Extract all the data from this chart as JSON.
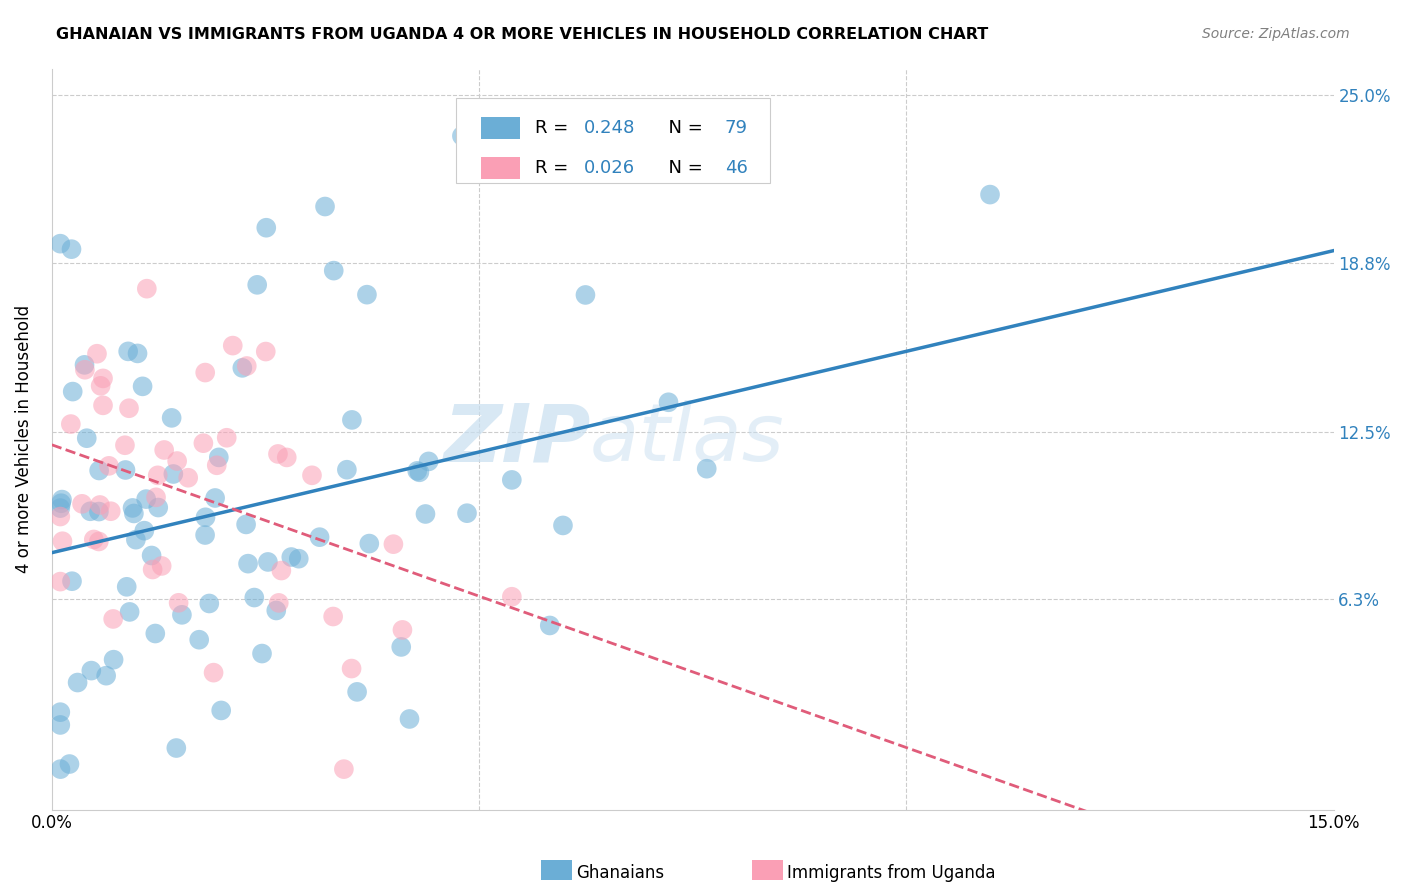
{
  "title": "GHANAIAN VS IMMIGRANTS FROM UGANDA 4 OR MORE VEHICLES IN HOUSEHOLD CORRELATION CHART",
  "source": "Source: ZipAtlas.com",
  "ylabel": "4 or more Vehicles in Household",
  "x_min": 0.0,
  "x_max": 0.15,
  "y_min": -0.015,
  "y_max": 0.26,
  "y_tick_labels_right": [
    "25.0%",
    "18.8%",
    "12.5%",
    "6.3%"
  ],
  "y_tick_values_right": [
    0.25,
    0.188,
    0.125,
    0.063
  ],
  "legend_label1": "Ghanaians",
  "legend_label2": "Immigrants from Uganda",
  "R1": 0.248,
  "N1": 79,
  "R2": 0.026,
  "N2": 46,
  "color_blue": "#6baed6",
  "color_pink": "#fa9fb5",
  "color_blue_line": "#3182bd",
  "color_pink_line": "#e05c7a",
  "color_blue_text": "#3182bd",
  "watermark_zip": "ZIP",
  "watermark_atlas": "atlas",
  "background_color": "#ffffff"
}
